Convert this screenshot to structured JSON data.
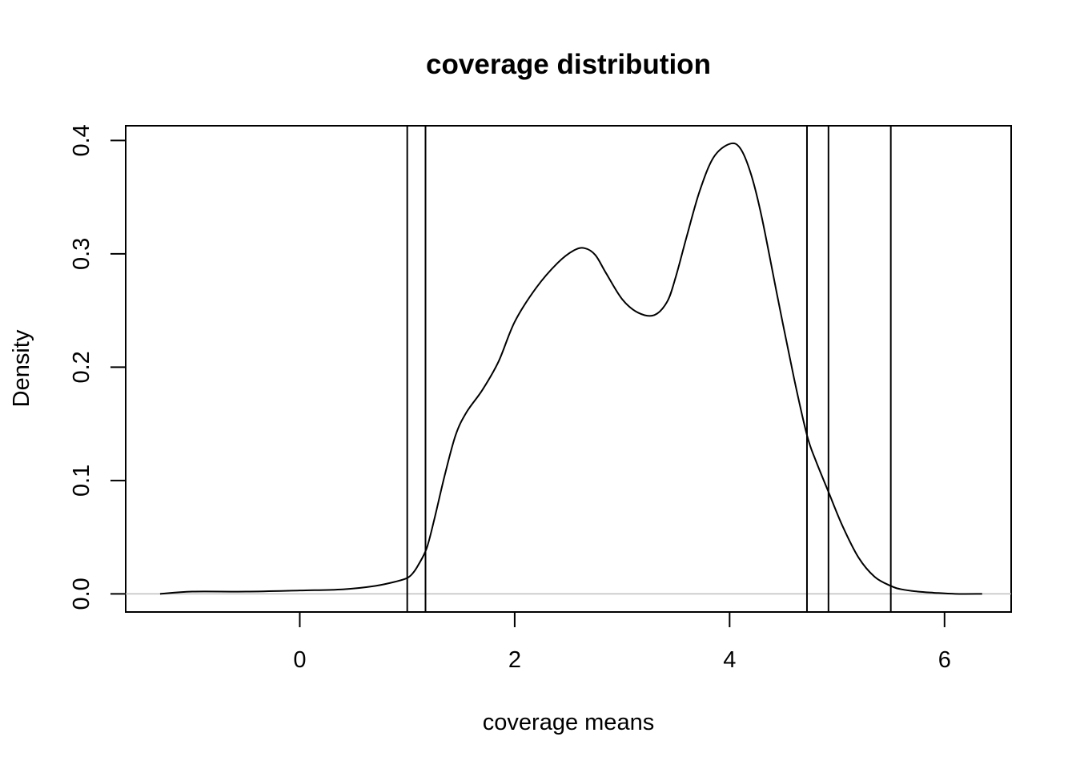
{
  "chart_data": {
    "type": "line",
    "title": "coverage distribution",
    "xlabel": "coverage means",
    "ylabel": "Density",
    "xlim": [
      -1.62,
      6.62
    ],
    "ylim": [
      -0.016,
      0.413
    ],
    "x_ticks": [
      "0",
      "2",
      "4",
      "6"
    ],
    "y_ticks": [
      "0.0",
      "0.1",
      "0.2",
      "0.3",
      "0.4"
    ],
    "grid": false,
    "zero_line_color": "#bebebe",
    "line_color": "#000000",
    "series": [
      {
        "x": [
          -1.3,
          -1.0,
          -0.5,
          0.0,
          0.4,
          0.7,
          0.9,
          1.0,
          1.05,
          1.1,
          1.18,
          1.25,
          1.35,
          1.45,
          1.55,
          1.7,
          1.85,
          2.0,
          2.2,
          2.4,
          2.55,
          2.65,
          2.75,
          2.85,
          3.0,
          3.15,
          3.3,
          3.42,
          3.5,
          3.6,
          3.72,
          3.85,
          4.0,
          4.1,
          4.2,
          4.3,
          4.45,
          4.6,
          4.72,
          4.8,
          4.92,
          5.05,
          5.2,
          5.35,
          5.5,
          5.6,
          5.75,
          5.9,
          6.1,
          6.35
        ],
        "y": [
          0.0,
          0.002,
          0.002,
          0.003,
          0.004,
          0.007,
          0.011,
          0.014,
          0.018,
          0.025,
          0.04,
          0.065,
          0.105,
          0.14,
          0.16,
          0.18,
          0.205,
          0.24,
          0.27,
          0.292,
          0.303,
          0.305,
          0.299,
          0.283,
          0.26,
          0.248,
          0.246,
          0.258,
          0.28,
          0.315,
          0.355,
          0.385,
          0.397,
          0.393,
          0.37,
          0.332,
          0.26,
          0.19,
          0.14,
          0.118,
          0.09,
          0.06,
          0.032,
          0.015,
          0.007,
          0.004,
          0.002,
          0.001,
          0.0,
          0.0
        ]
      }
    ],
    "vlines": [
      1.0,
      1.17,
      4.72,
      4.92,
      5.5
    ]
  }
}
